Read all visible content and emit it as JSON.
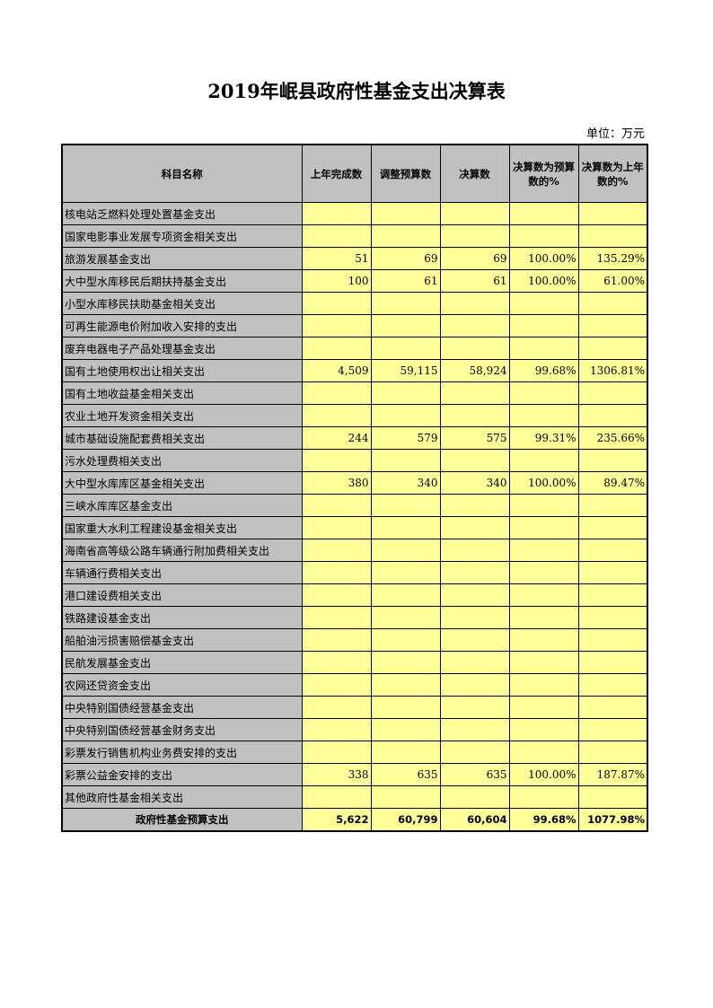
{
  "title": "2019年岷县政府性基金支出决算表",
  "unit": "单位：万元",
  "columns": [
    "科目名称",
    "上年完成数",
    "调整预算数",
    "决算数",
    "决算数为预算数的%",
    "决算数为上年数的%"
  ],
  "rows": [
    [
      "核电站乏燃料处理处置基金支出",
      "",
      "",
      "",
      "",
      ""
    ],
    [
      "国家电影事业发展专项资金相关支出",
      "",
      "",
      "",
      "",
      ""
    ],
    [
      "旅游发展基金支出",
      "51",
      "69",
      "69",
      "100.00%",
      "135.29%"
    ],
    [
      "大中型水库移民后期扶持基金支出",
      "100",
      "61",
      "61",
      "100.00%",
      "61.00%"
    ],
    [
      "小型水库移民扶助基金相关支出",
      "",
      "",
      "",
      "",
      ""
    ],
    [
      "可再生能源电价附加收入安排的支出",
      "",
      "",
      "",
      "",
      ""
    ],
    [
      "废弃电器电子产品处理基金支出",
      "",
      "",
      "",
      "",
      ""
    ],
    [
      "国有土地使用权出让相关支出",
      "4,509",
      "59,115",
      "58,924",
      "99.68%",
      "1306.81%"
    ],
    [
      "国有土地收益基金相关支出",
      "",
      "",
      "",
      "",
      ""
    ],
    [
      "农业土地开发资金相关支出",
      "",
      "",
      "",
      "",
      ""
    ],
    [
      "城市基础设施配套费相关支出",
      "244",
      "579",
      "575",
      "99.31%",
      "235.66%"
    ],
    [
      "污水处理费相关支出",
      "",
      "",
      "",
      "",
      ""
    ],
    [
      "大中型水库库区基金相关支出",
      "380",
      "340",
      "340",
      "100.00%",
      "89.47%"
    ],
    [
      "三峡水库库区基金支出",
      "",
      "",
      "",
      "",
      ""
    ],
    [
      "国家重大水利工程建设基金相关支出",
      "",
      "",
      "",
      "",
      ""
    ],
    [
      "海南省高等级公路车辆通行附加费相关支出",
      "",
      "",
      "",
      "",
      ""
    ],
    [
      "车辆通行费相关支出",
      "",
      "",
      "",
      "",
      ""
    ],
    [
      "港口建设费相关支出",
      "",
      "",
      "",
      "",
      ""
    ],
    [
      "铁路建设基金支出",
      "",
      "",
      "",
      "",
      ""
    ],
    [
      "船舶油污损害赔偿基金支出",
      "",
      "",
      "",
      "",
      ""
    ],
    [
      "民航发展基金支出",
      "",
      "",
      "",
      "",
      ""
    ],
    [
      "农网还贷资金支出",
      "",
      "",
      "",
      "",
      ""
    ],
    [
      "中央特别国债经营基金支出",
      "",
      "",
      "",
      "",
      ""
    ],
    [
      "中央特别国债经营基金财务支出",
      "",
      "",
      "",
      "",
      ""
    ],
    [
      "彩票发行销售机构业务费安排的支出",
      "",
      "",
      "",
      "",
      ""
    ],
    [
      "彩票公益金安排的支出",
      "338",
      "635",
      "635",
      "100.00%",
      "187.87%"
    ],
    [
      "其他政府性基金相关支出",
      "",
      "",
      "",
      "",
      ""
    ]
  ],
  "total": [
    "政府性基金预算支出",
    "5,622",
    "60,799",
    "60,604",
    "99.68%",
    "1077.98%"
  ],
  "colors": {
    "header_bg": "#c0c0c0",
    "cell_bg": "#ffff99"
  }
}
